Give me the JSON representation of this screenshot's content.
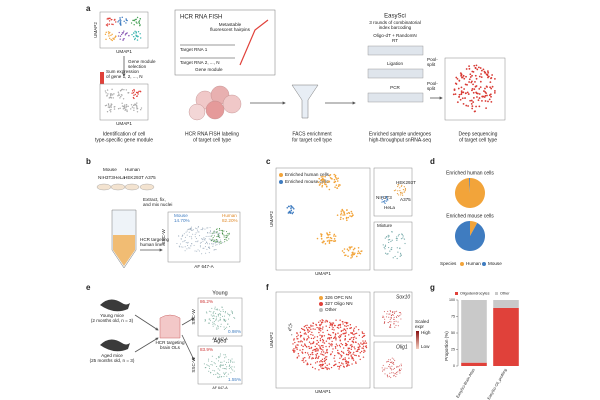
{
  "panel_a": {
    "label": "a",
    "umap1": "UMAP1",
    "umap2": "UMAP2",
    "gene_module_selection": [
      "Gene module",
      "selection"
    ],
    "sum_expression": [
      "Sum expression",
      "of gene 1, 2, ..., N"
    ],
    "hcr_title": "HCR RNA FISH",
    "hairpins": [
      "Metastable",
      "fluorescent hairpins"
    ],
    "target_rna_1": "Target RNA 1",
    "target_rna_n": "Target RNA 2, ..., N",
    "gene_module": "Gene module",
    "easysci": "EasySci",
    "easysci_sub": [
      "3 rounds of combinatorial",
      "index barcoding"
    ],
    "rt": [
      "Oligo-dT + RandomN",
      "RT"
    ],
    "ligation": "Ligation",
    "pcr": "PCR",
    "pool_split": [
      "Pool-",
      "split"
    ],
    "captions": [
      [
        "Identification of cell",
        "type-specific gene module"
      ],
      [
        "HCR RNA FISH labeling",
        "of target cell type"
      ],
      [
        "FACS enrichment",
        "for target cell type"
      ],
      [
        "Enriched sample undergoes",
        "high-throughput snRNA-seq"
      ],
      [
        "Deep sequencing",
        "of target cell type"
      ]
    ]
  },
  "panel_b": {
    "label": "b",
    "mouse": "Mouse",
    "human": "Human",
    "lines": [
      "NIH3T3",
      "HeLa",
      "HEK293T",
      "A375"
    ],
    "extract": [
      "Extract, fix,",
      "and mix nuclei"
    ],
    "hcr": [
      "HCR targeting",
      "human lines"
    ],
    "gate_mouse": [
      "Mouse",
      "14.70%"
    ],
    "gate_human": [
      "Human",
      "82.20%"
    ],
    "ylabel": "SSC-W",
    "xlabel": "AF 647-A"
  },
  "panel_c": {
    "label": "c",
    "legend": [
      "Enriched human cells",
      "Enriched mouse cells"
    ],
    "umap1": "UMAP1",
    "umap2": "UMAP2",
    "sub_labels": [
      "HEK293T",
      "NIH3T3",
      "A375",
      "HeLa"
    ],
    "mixture": "Mixture"
  },
  "panel_d": {
    "label": "d",
    "type": "pie",
    "legend_title": "Species",
    "colors": [
      "#f2a43a",
      "#3f7cc0"
    ],
    "names": [
      "Human",
      "Mouse"
    ],
    "pies": [
      {
        "title": "Enriched human cells",
        "values": [
          99,
          1
        ]
      },
      {
        "title": "Enriched mouse cells",
        "values": [
          8,
          92
        ]
      }
    ]
  },
  "panel_e": {
    "label": "e",
    "young": [
      "Young mice",
      "(2 months old, n = 3)"
    ],
    "aged": [
      "Aged mice",
      "(25 months old, n = 3)"
    ],
    "hcr": [
      "HCR targeting",
      "brain OLs"
    ],
    "young_title": "Young",
    "aged_title": "Aged",
    "young_gates": [
      "86.2%",
      "0.98%"
    ],
    "aged_gates": [
      "83.9%",
      "1.55%"
    ],
    "ylabel": "SSC-W",
    "xlabel": "AF 647-A"
  },
  "panel_f": {
    "label": "f",
    "legend": [
      "326 OPC NN",
      "327 Oligo NN",
      "Other"
    ],
    "umap1": "UMAP1",
    "umap2": "UMAP2",
    "genes": [
      "Sox10",
      "Olig1"
    ],
    "scale_title": [
      "Scaled",
      "expr"
    ],
    "high": "High",
    "low": "Low"
  },
  "panel_g": {
    "label": "g",
    "type": "bar",
    "categories": [
      "EasySci-Brain Atlas",
      "EasySci-Oli_profiling"
    ],
    "series": [
      {
        "name": "Oligodendrocytes",
        "color": "#e0413a",
        "values": [
          5,
          88
        ]
      },
      {
        "name": "Other",
        "color": "#c9c9c9",
        "values": [
          95,
          12
        ]
      }
    ],
    "ylabel": "Proportion (%)",
    "ylim": [
      0,
      100
    ],
    "yticks": [
      0,
      25,
      50,
      75,
      100
    ]
  }
}
